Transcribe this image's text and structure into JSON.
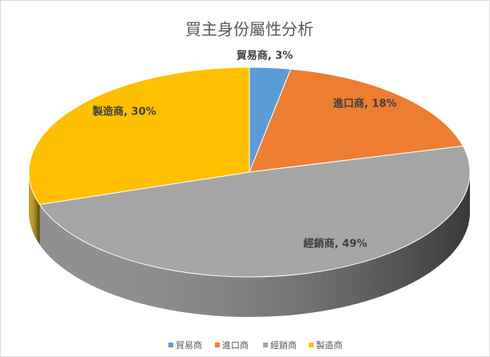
{
  "chart_data": {
    "type": "pie",
    "title": "買主身份屬性分析",
    "categories": [
      "貿易商",
      "進口商",
      "經銷商",
      "製造商"
    ],
    "values": [
      3,
      18,
      49,
      30
    ],
    "value_labels": [
      "貿易商, 3%",
      "進口商, 18%",
      "經銷商, 49%",
      "製造商, 30%"
    ],
    "colors": [
      "#5b9bd5",
      "#ed7d31",
      "#a5a5a5",
      "#ffc000"
    ],
    "legend": "bottom"
  }
}
